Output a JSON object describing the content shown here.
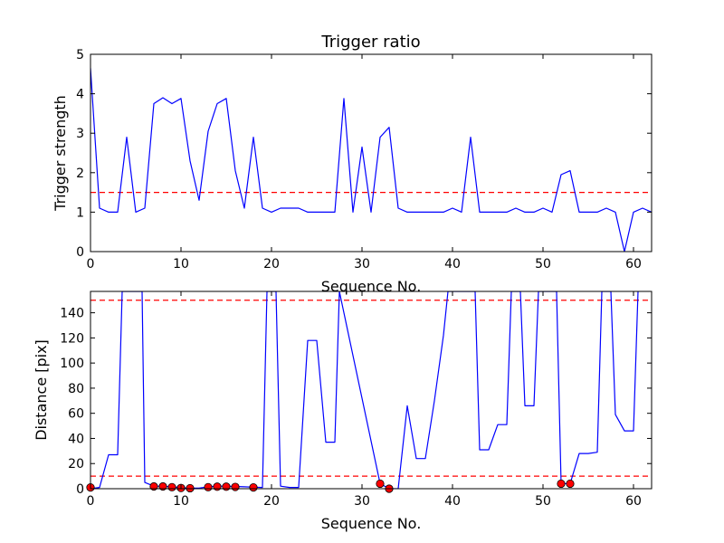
{
  "chart_data": [
    {
      "type": "line",
      "title": "Trigger ratio",
      "xlabel": "Sequence No.",
      "ylabel": "Trigger strength",
      "xlim": [
        0,
        62
      ],
      "ylim": [
        0,
        5
      ],
      "xticks": [
        0,
        10,
        20,
        30,
        40,
        50,
        60
      ],
      "yticks": [
        0,
        1,
        2,
        3,
        4,
        5
      ],
      "grid": false,
      "series": [
        {
          "color": "#0000ff",
          "style": "solid",
          "x": [
            0,
            1,
            2,
            3,
            4,
            5,
            6,
            7,
            8,
            9,
            10,
            11,
            12,
            13,
            14,
            15,
            16,
            17,
            18,
            19,
            20,
            21,
            22,
            23,
            24,
            25,
            26,
            27,
            28,
            29,
            30,
            31,
            32,
            33,
            34,
            35,
            36,
            37,
            38,
            39,
            40,
            41,
            42,
            43,
            44,
            45,
            46,
            47,
            48,
            49,
            50,
            51,
            52,
            53,
            54,
            55,
            56,
            57,
            58,
            59,
            60,
            61,
            62
          ],
          "y": [
            4.65,
            1.1,
            1.0,
            1.0,
            2.9,
            1.0,
            1.1,
            3.75,
            3.9,
            3.75,
            3.88,
            2.3,
            1.3,
            3.05,
            3.75,
            3.88,
            2.05,
            1.1,
            2.9,
            1.1,
            1.0,
            1.1,
            1.1,
            1.1,
            1.0,
            1.0,
            1.0,
            1.0,
            3.88,
            1.0,
            2.65,
            1.0,
            2.9,
            3.15,
            1.1,
            1.0,
            1.0,
            1.0,
            1.0,
            1.0,
            1.1,
            1.0,
            2.9,
            1.0,
            1.0,
            1.0,
            1.0,
            1.1,
            1.0,
            1.0,
            1.1,
            1.0,
            1.95,
            2.05,
            1.0,
            1.0,
            1.0,
            1.1,
            1.0,
            0.0,
            1.0,
            1.1,
            1.0
          ]
        }
      ],
      "reference_lines": [
        {
          "y": 1.5,
          "color": "#ff0000",
          "style": "dashed"
        }
      ]
    },
    {
      "type": "line",
      "title": "",
      "xlabel": "Sequence No.",
      "ylabel": "Distance [pix]",
      "xlim": [
        0,
        62
      ],
      "ylim": [
        0,
        157
      ],
      "xticks": [
        0,
        10,
        20,
        30,
        40,
        50,
        60
      ],
      "yticks": [
        0,
        20,
        40,
        60,
        80,
        100,
        120,
        140
      ],
      "grid": false,
      "series": [
        {
          "color": "#0000ff",
          "style": "solid",
          "x": [
            0,
            1,
            2,
            3,
            3.5,
            5.7,
            6,
            7,
            8,
            9,
            10,
            11,
            12,
            13,
            14,
            15,
            16,
            17,
            18,
            19,
            19.5,
            20.5,
            21,
            22,
            23,
            24,
            25,
            26,
            27,
            27.5,
            32,
            33,
            34,
            35,
            36,
            37,
            38,
            39,
            39.5,
            42.5,
            43,
            44,
            45,
            46,
            46.5,
            47.5,
            48,
            49,
            49.5,
            51.5,
            52,
            53,
            54,
            55,
            56,
            56.5,
            57.5,
            58,
            59,
            60,
            60.5
          ],
          "y": [
            0,
            1,
            27,
            27,
            157,
            157,
            5,
            2,
            2,
            1.5,
            0.8,
            0.5,
            0.5,
            1.5,
            2,
            2,
            1.8,
            1.5,
            1.2,
            1.0,
            157,
            157,
            2,
            1,
            1,
            118,
            118,
            37,
            37,
            157,
            4,
            0,
            0,
            66,
            24,
            24,
            70,
            122,
            157,
            157,
            31,
            31,
            51,
            51,
            157,
            157,
            66,
            66,
            157,
            157,
            4,
            4,
            28,
            28,
            29,
            157,
            157,
            59,
            46,
            46,
            157
          ]
        }
      ],
      "markers": {
        "color": "#ff0000",
        "x": [
          0,
          7,
          8,
          9,
          10,
          11,
          13,
          14,
          15,
          16,
          18,
          32,
          33,
          52,
          53
        ],
        "y": [
          1,
          1.8,
          1.8,
          1.2,
          0.6,
          0.4,
          1.2,
          1.6,
          1.6,
          1.4,
          1.0,
          4,
          0,
          4,
          4
        ]
      },
      "reference_lines": [
        {
          "y": 10,
          "color": "#ff0000",
          "style": "dashed"
        },
        {
          "y": 150,
          "color": "#ff0000",
          "style": "dashed"
        }
      ]
    }
  ]
}
